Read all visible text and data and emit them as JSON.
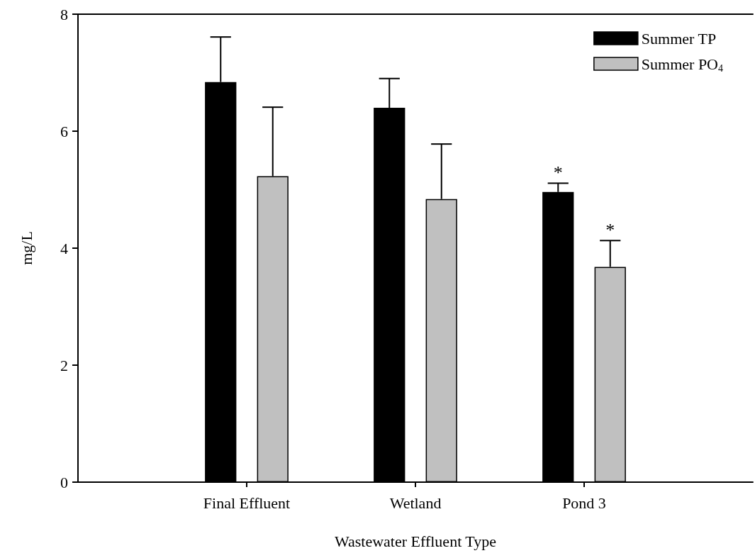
{
  "chart_data": {
    "type": "bar",
    "xlabel": "Wastewater Effluent Type",
    "ylabel": "mg/L",
    "categories": [
      "Final Effluent",
      "Wetland",
      "Pond 3"
    ],
    "series": [
      {
        "name": "Summer TP",
        "color": "#000000",
        "values": [
          6.84,
          6.4,
          4.96
        ],
        "errors": [
          [
            6.84,
            7.61
          ],
          [
            6.4,
            6.9
          ],
          [
            4.96,
            5.11
          ]
        ]
      },
      {
        "name": "Summer PO$_{4}$",
        "color": "#c0c0c0",
        "values": [
          5.23,
          4.84,
          3.68
        ],
        "errors": [
          [
            5.23,
            6.41
          ],
          [
            4.84,
            5.78
          ],
          [
            3.68,
            4.13
          ]
        ]
      }
    ],
    "annotations": [
      "*",
      "*"
    ],
    "ylim": [
      0,
      8
    ],
    "yticks": [
      0,
      2,
      4,
      6,
      8
    ],
    "grid": false,
    "legend": "top right"
  }
}
